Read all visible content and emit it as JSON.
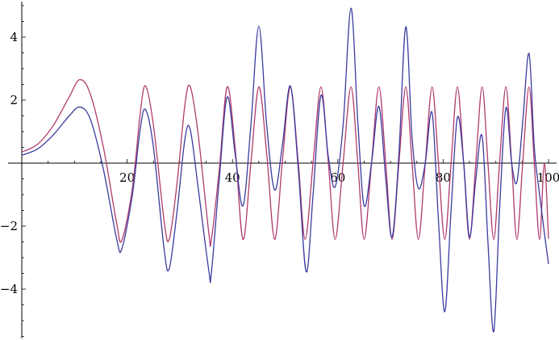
{
  "chart_data": {
    "type": "line",
    "title": "",
    "xlabel": "",
    "ylabel": "",
    "xlim": [
      0,
      100
    ],
    "ylim": [
      -5.6,
      5.0
    ],
    "grid": false,
    "legend": "none",
    "x_ticks": [
      {
        "value": 20,
        "label": "20"
      },
      {
        "value": 40,
        "label": "40"
      },
      {
        "value": 60,
        "label": "60"
      },
      {
        "value": 80,
        "label": "80"
      },
      {
        "value": 100,
        "label": "100"
      }
    ],
    "y_ticks": [
      {
        "value": 4,
        "label": "4"
      },
      {
        "value": 2,
        "label": "2"
      },
      {
        "value": -2,
        "label": "−2"
      },
      {
        "value": -4,
        "label": "−4"
      }
    ],
    "series": [
      {
        "color": "#b03a6e",
        "points": [
          [
            0,
            0.35
          ],
          [
            3,
            0.6
          ],
          [
            6,
            1.2
          ],
          [
            9,
            2.1
          ],
          [
            11,
            2.65
          ],
          [
            13,
            2.2
          ],
          [
            15.5,
            0.5
          ],
          [
            18,
            -1.9
          ],
          [
            19,
            -2.45
          ],
          [
            21,
            -0.8
          ],
          [
            22.5,
            1.6
          ],
          [
            23.5,
            2.45
          ],
          [
            25,
            1.2
          ],
          [
            27,
            -1.8
          ],
          [
            28,
            -2.42
          ],
          [
            29.5,
            -0.6
          ],
          [
            31,
            1.9
          ],
          [
            32,
            2.42
          ],
          [
            33.5,
            0.9
          ],
          [
            35.5,
            -2.2
          ],
          [
            36,
            -2.42
          ],
          [
            37.5,
            -0.2
          ],
          [
            39,
            2.42
          ],
          [
            40.5,
            0.5
          ],
          [
            42,
            -2.42
          ],
          [
            43.5,
            0.0
          ],
          [
            45,
            2.42
          ],
          [
            46.5,
            0.3
          ],
          [
            48,
            -2.42
          ],
          [
            49.5,
            0.1
          ],
          [
            51,
            2.42
          ],
          [
            52.5,
            0.0
          ],
          [
            53.8,
            -2.42
          ],
          [
            55.3,
            0.0
          ],
          [
            56.8,
            2.42
          ],
          [
            58.2,
            0.0
          ],
          [
            59.5,
            -2.42
          ],
          [
            61,
            0.0
          ],
          [
            62.5,
            2.42
          ],
          [
            63.8,
            0.0
          ],
          [
            65,
            -2.42
          ],
          [
            66.4,
            0.0
          ],
          [
            67.8,
            2.42
          ],
          [
            69.1,
            0.0
          ],
          [
            70.3,
            -2.42
          ],
          [
            71.6,
            0.0
          ],
          [
            72.9,
            2.42
          ],
          [
            74.1,
            0.0
          ],
          [
            75.3,
            -2.42
          ],
          [
            76.6,
            0.0
          ],
          [
            77.9,
            2.42
          ],
          [
            79.1,
            0.0
          ],
          [
            80.3,
            -2.42
          ],
          [
            81.5,
            0.0
          ],
          [
            82.7,
            2.42
          ],
          [
            83.9,
            0.0
          ],
          [
            85,
            -2.42
          ],
          [
            86.2,
            0.0
          ],
          [
            87.4,
            2.42
          ],
          [
            88.5,
            0.0
          ],
          [
            89.6,
            -2.42
          ],
          [
            90.7,
            0.0
          ],
          [
            91.9,
            2.42
          ],
          [
            93,
            0.0
          ],
          [
            94,
            -2.42
          ],
          [
            95.1,
            0.0
          ],
          [
            96.3,
            2.42
          ],
          [
            97.3,
            0.0
          ],
          [
            98.3,
            -2.42
          ],
          [
            99.2,
            0.0
          ],
          [
            100,
            -2.4
          ]
        ]
      },
      {
        "color": "#3b3ba0",
        "points": [
          [
            0,
            0.25
          ],
          [
            3,
            0.45
          ],
          [
            6,
            0.9
          ],
          [
            9,
            1.5
          ],
          [
            11,
            1.78
          ],
          [
            13,
            1.4
          ],
          [
            15.5,
            -0.2
          ],
          [
            18,
            -2.4
          ],
          [
            19,
            -2.72
          ],
          [
            21,
            -1.0
          ],
          [
            22.5,
            1.1
          ],
          [
            23.5,
            1.7
          ],
          [
            25,
            0.5
          ],
          [
            27,
            -2.7
          ],
          [
            28,
            -3.35
          ],
          [
            29.5,
            -1.5
          ],
          [
            31,
            0.8
          ],
          [
            32,
            1.05
          ],
          [
            33.5,
            -0.8
          ],
          [
            35.5,
            -3.4
          ],
          [
            36,
            -3.48
          ],
          [
            37.5,
            -0.5
          ],
          [
            39,
            2.1
          ],
          [
            40.5,
            0.3
          ],
          [
            42,
            -1.35
          ],
          [
            43.5,
            1.2
          ],
          [
            45,
            4.35
          ],
          [
            46.5,
            1.2
          ],
          [
            48,
            -0.85
          ],
          [
            49.5,
            0.6
          ],
          [
            51,
            2.45
          ],
          [
            52.5,
            -0.2
          ],
          [
            54,
            -3.45
          ],
          [
            55.3,
            -1.0
          ],
          [
            56.8,
            2.15
          ],
          [
            58.2,
            0.2
          ],
          [
            59.5,
            -0.75
          ],
          [
            61,
            1.2
          ],
          [
            62.5,
            4.92
          ],
          [
            63.8,
            1.3
          ],
          [
            65,
            -1.35
          ],
          [
            66.4,
            0.0
          ],
          [
            67.8,
            1.8
          ],
          [
            69.1,
            -0.5
          ],
          [
            70.3,
            -2.35
          ],
          [
            71.6,
            0.3
          ],
          [
            72.9,
            4.33
          ],
          [
            74.1,
            0.8
          ],
          [
            75.3,
            -0.8
          ],
          [
            76.6,
            0.0
          ],
          [
            77.9,
            1.6
          ],
          [
            79.1,
            -1.8
          ],
          [
            80.3,
            -4.72
          ],
          [
            81.5,
            -1.5
          ],
          [
            82.7,
            1.45
          ],
          [
            83.9,
            0.0
          ],
          [
            85,
            -2.35
          ],
          [
            86.2,
            -0.5
          ],
          [
            87.4,
            0.85
          ],
          [
            88.5,
            -2.5
          ],
          [
            89.6,
            -5.35
          ],
          [
            90.7,
            -1.5
          ],
          [
            91.9,
            1.75
          ],
          [
            93,
            0.0
          ],
          [
            94,
            -0.6
          ],
          [
            95.1,
            1.3
          ],
          [
            96.3,
            3.48
          ],
          [
            97.3,
            0.5
          ],
          [
            98.3,
            -1.0
          ],
          [
            99.2,
            -2.2
          ],
          [
            100,
            -3.2
          ]
        ]
      }
    ]
  }
}
